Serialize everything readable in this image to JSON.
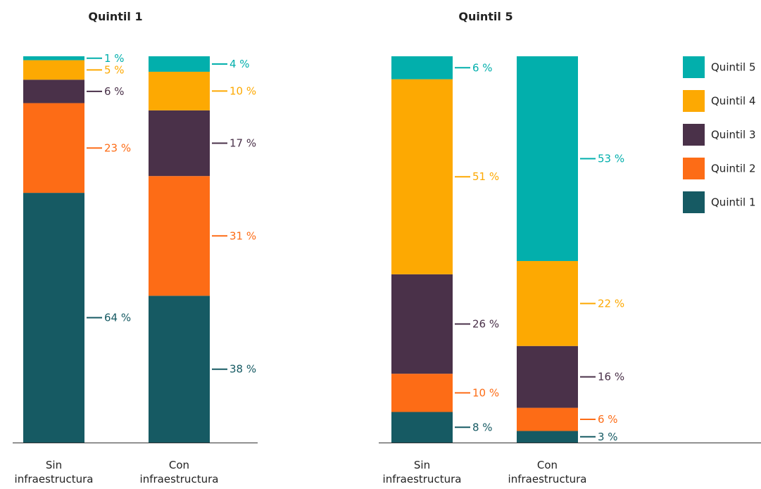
{
  "colors": {
    "Quintil 1": "#165a63",
    "Quintil 2": "#fd6c16",
    "Quintil 3": "#4a3149",
    "Quintil 4": "#fda902",
    "Quintil 5": "#02afac"
  },
  "legend_placement": "right",
  "chart_data": [
    {
      "type": "bar",
      "stacked": true,
      "title": "Quintil 1",
      "categories": [
        "Sin infraestructura",
        "Con infraestructura"
      ],
      "category_lines": [
        [
          "Sin",
          "infraestructura"
        ],
        [
          "Con",
          "infraestructura"
        ]
      ],
      "series": [
        {
          "name": "Quintil 1",
          "values": [
            64,
            38
          ],
          "labels": [
            "64 %",
            "38 %"
          ]
        },
        {
          "name": "Quintil 2",
          "values": [
            23,
            31
          ],
          "labels": [
            "23 %",
            "31 %"
          ]
        },
        {
          "name": "Quintil 3",
          "values": [
            6,
            17
          ],
          "labels": [
            "6 %",
            "17 %"
          ]
        },
        {
          "name": "Quintil 4",
          "values": [
            5,
            10
          ],
          "labels": [
            "5 %",
            "10 %"
          ]
        },
        {
          "name": "Quintil 5",
          "values": [
            1,
            4
          ],
          "labels": [
            "1 %",
            "4 %"
          ]
        }
      ],
      "ylim": [
        0,
        100
      ],
      "grid": false
    },
    {
      "type": "bar",
      "stacked": true,
      "title": "Quintil 5",
      "categories": [
        "Sin infraestructura",
        "Con infraestructura"
      ],
      "category_lines": [
        [
          "Sin",
          "infraestructura"
        ],
        [
          "Con",
          "infraestructura"
        ]
      ],
      "series": [
        {
          "name": "Quintil 1",
          "values": [
            8,
            3
          ],
          "labels": [
            "8 %",
            "3 %"
          ]
        },
        {
          "name": "Quintil 2",
          "values": [
            10,
            6
          ],
          "labels": [
            "10 %",
            "6 %"
          ]
        },
        {
          "name": "Quintil 3",
          "values": [
            26,
            16
          ],
          "labels": [
            "26 %",
            "16 %"
          ]
        },
        {
          "name": "Quintil 4",
          "values": [
            51,
            22
          ],
          "labels": [
            "51 %",
            "22 %"
          ]
        },
        {
          "name": "Quintil 5",
          "values": [
            6,
            53
          ],
          "labels": [
            "6 %",
            "53 %"
          ]
        }
      ],
      "ylim": [
        0,
        100
      ],
      "grid": false
    }
  ],
  "legend": {
    "items": [
      "Quintil 5",
      "Quintil 4",
      "Quintil 3",
      "Quintil 2",
      "Quintil 1"
    ]
  }
}
